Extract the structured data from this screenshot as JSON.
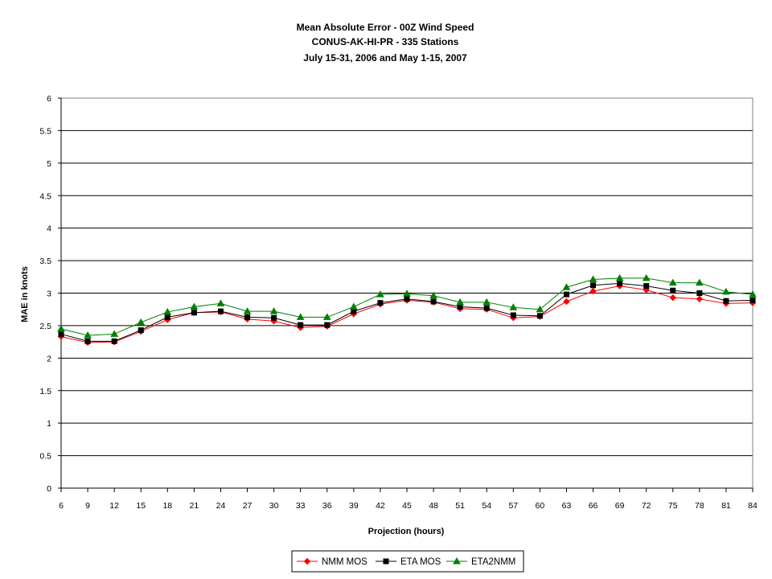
{
  "chart_data": {
    "type": "line",
    "title": [
      "Mean Absolute Error - 00Z Wind Speed",
      "CONUS-AK-HI-PR - 335 Stations",
      "July 15-31, 2006 and May 1-15, 2007"
    ],
    "xlabel": "Projection (hours)",
    "ylabel": "MAE in knots",
    "x": [
      6,
      9,
      12,
      15,
      18,
      21,
      24,
      27,
      30,
      33,
      36,
      39,
      42,
      45,
      48,
      51,
      54,
      57,
      60,
      63,
      66,
      69,
      72,
      75,
      78,
      81,
      84
    ],
    "ylim": [
      0,
      6
    ],
    "yticks": [
      "0",
      "0.5",
      "1",
      "1.5",
      "2",
      "2.5",
      "3",
      "3.5",
      "4",
      "4.5",
      "5",
      "5.5",
      "6"
    ],
    "ytick_values": [
      0,
      0.5,
      1,
      1.5,
      2,
      2.5,
      3,
      3.5,
      4,
      4.5,
      5,
      5.5,
      6
    ],
    "grid": "horizontal",
    "legend_position": "bottom",
    "series": [
      {
        "name": "NMM MOS",
        "color": "#ff0000",
        "marker": "diamond",
        "values": [
          2.33,
          2.24,
          2.25,
          2.41,
          2.59,
          2.7,
          2.71,
          2.6,
          2.57,
          2.47,
          2.49,
          2.68,
          2.83,
          2.89,
          2.86,
          2.76,
          2.75,
          2.62,
          2.64,
          2.87,
          3.03,
          3.11,
          3.05,
          2.93,
          2.91,
          2.84,
          2.85
        ]
      },
      {
        "name": "ETA MOS",
        "color": "#000000",
        "marker": "square",
        "values": [
          2.37,
          2.26,
          2.26,
          2.43,
          2.63,
          2.7,
          2.72,
          2.63,
          2.62,
          2.51,
          2.51,
          2.72,
          2.85,
          2.91,
          2.87,
          2.79,
          2.77,
          2.66,
          2.65,
          2.98,
          3.12,
          3.15,
          3.11,
          3.04,
          3.0,
          2.88,
          2.89
        ]
      },
      {
        "name": "ETA2NMM",
        "color": "#008000",
        "marker": "triangle",
        "values": [
          2.45,
          2.35,
          2.37,
          2.55,
          2.71,
          2.79,
          2.84,
          2.72,
          2.72,
          2.63,
          2.63,
          2.79,
          2.98,
          2.99,
          2.96,
          2.86,
          2.86,
          2.78,
          2.75,
          3.09,
          3.21,
          3.23,
          3.23,
          3.16,
          3.16,
          3.02,
          2.98
        ]
      }
    ]
  }
}
